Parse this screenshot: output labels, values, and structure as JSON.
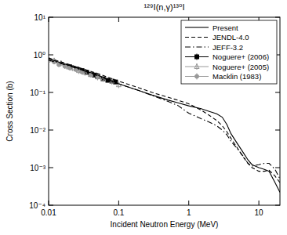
{
  "chart_data": {
    "type": "line",
    "title": "¹²⁹I(n,γ)¹³⁰I",
    "x_label": "Incident Neutron Energy (MeV)",
    "y_label": "Cross Section (b)",
    "log": true,
    "legend": "top-right",
    "grid": false,
    "xlim": [
      0.01,
      20
    ],
    "xticks": [
      0.01,
      0.1,
      1,
      10
    ],
    "ylim": [
      0.0001,
      10
    ],
    "yticks": [
      {
        "value": 0.0001,
        "label": "10⁻⁴"
      },
      {
        "value": 0.001,
        "label": "10⁻³"
      },
      {
        "value": 0.01,
        "label": "10⁻²"
      },
      {
        "value": 0.1,
        "label": "10⁻¹"
      },
      {
        "value": 1,
        "label": "10⁰"
      },
      {
        "value": 10,
        "label": "10¹"
      }
    ],
    "series": [
      {
        "name": "Present",
        "type": "line",
        "line_style": "solid",
        "color": "#000000",
        "x": [
          0.01,
          0.02,
          0.03,
          0.05,
          0.1,
          0.2,
          0.3,
          0.5,
          0.7,
          1,
          1.5,
          2,
          2.5,
          3,
          3.5,
          4,
          5,
          6,
          7,
          8,
          10,
          12,
          14,
          17,
          20
        ],
        "values": [
          0.78,
          0.52,
          0.4,
          0.29,
          0.17,
          0.11,
          0.085,
          0.063,
          0.053,
          0.044,
          0.037,
          0.031,
          0.027,
          0.022,
          0.014,
          0.008,
          0.0042,
          0.0025,
          0.0016,
          0.0012,
          0.001,
          0.0009,
          0.0008,
          0.0004,
          0.00022
        ]
      },
      {
        "name": "JENDL-4.0",
        "type": "line",
        "line_style": "dashed",
        "color": "#000000",
        "x": [
          0.01,
          0.02,
          0.03,
          0.05,
          0.1,
          0.2,
          0.3,
          0.5,
          0.7,
          1,
          1.5,
          2,
          2.5,
          3,
          3.5,
          4,
          5,
          6,
          7,
          8,
          10,
          12,
          14,
          17,
          20
        ],
        "values": [
          0.82,
          0.55,
          0.43,
          0.32,
          0.2,
          0.13,
          0.1,
          0.075,
          0.062,
          0.05,
          0.034,
          0.024,
          0.018,
          0.013,
          0.009,
          0.006,
          0.0032,
          0.0019,
          0.0013,
          0.001,
          0.0008,
          0.0008,
          0.00085,
          0.0006,
          0.0004
        ]
      },
      {
        "name": "JEFF-3.2",
        "type": "line",
        "line_style": "dashdot",
        "color": "#000000",
        "x": [
          0.01,
          0.02,
          0.03,
          0.05,
          0.1,
          0.2,
          0.3,
          0.5,
          0.7,
          1,
          1.5,
          2,
          2.5,
          3,
          3.5,
          4,
          5,
          6,
          7,
          8,
          10,
          12,
          14,
          17,
          20
        ],
        "values": [
          0.72,
          0.5,
          0.39,
          0.28,
          0.17,
          0.11,
          0.083,
          0.058,
          0.045,
          0.028,
          0.02,
          0.016,
          0.013,
          0.01,
          0.0075,
          0.005,
          0.0031,
          0.002,
          0.0013,
          0.0011,
          0.0012,
          0.0013,
          0.0013,
          0.0009,
          0.0005
        ]
      },
      {
        "name": "Noguere+ (2006)",
        "type": "scatter",
        "marker": "square",
        "color": "#000000",
        "x": [
          0.02,
          0.025,
          0.03,
          0.035,
          0.04,
          0.045,
          0.05,
          0.06,
          0.07,
          0.08,
          0.09
        ],
        "values": [
          0.48,
          0.42,
          0.38,
          0.34,
          0.3,
          0.29,
          0.26,
          0.23,
          0.21,
          0.2,
          0.19
        ],
        "errors": [
          0.05,
          0.04,
          0.04,
          0.03,
          0.03,
          0.03,
          0.03,
          0.02,
          0.02,
          0.02,
          0.02
        ]
      },
      {
        "name": "Noguere+ (2005)",
        "type": "scatter",
        "marker": "triangle",
        "color": "#999999",
        "x": [
          0.01,
          0.012,
          0.015,
          0.018,
          0.022,
          0.027,
          0.033,
          0.04,
          0.05,
          0.06,
          0.08,
          0.1
        ],
        "values": [
          0.8,
          0.7,
          0.6,
          0.5,
          0.45,
          0.38,
          0.34,
          0.3,
          0.26,
          0.23,
          0.2,
          0.16
        ],
        "errors": [
          0.15,
          0.13,
          0.11,
          0.09,
          0.08,
          0.07,
          0.06,
          0.05,
          0.05,
          0.04,
          0.04,
          0.03
        ]
      },
      {
        "name": "Macklin (1983)",
        "type": "scatter",
        "marker": "circle",
        "color": "#999999",
        "x": [
          0.01,
          0.012,
          0.014,
          0.017,
          0.02,
          0.025,
          0.03,
          0.04,
          0.05
        ],
        "values": [
          0.7,
          0.65,
          0.55,
          0.5,
          0.45,
          0.4,
          0.35,
          0.3,
          0.27
        ],
        "errors": [
          0.1,
          0.09,
          0.08,
          0.07,
          0.06,
          0.05,
          0.05,
          0.04,
          0.04
        ]
      }
    ]
  }
}
